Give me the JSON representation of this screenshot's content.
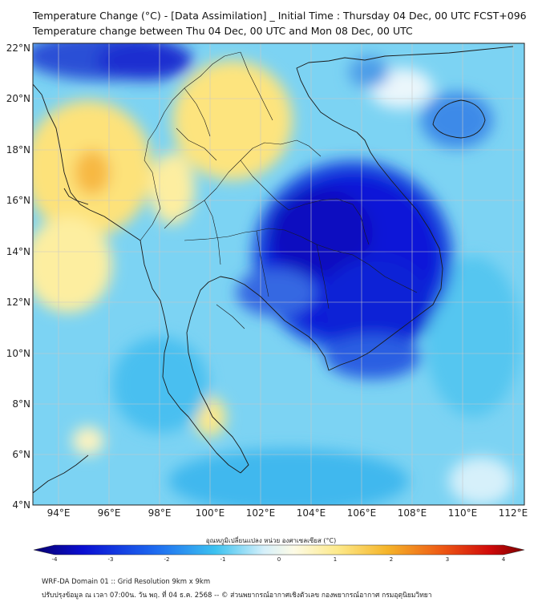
{
  "titles": {
    "line1": "Temperature Change (°C) - [Data Assimilation] _ Initial Time : Thursday 04 Dec, 00 UTC FCST+096",
    "line2": "Temperature change between Thu 04 Dec, 00 UTC and Mon 08 Dec, 00 UTC"
  },
  "map": {
    "region": "Indochina / Thailand",
    "lon_range": [
      93,
      112.5
    ],
    "lat_range": [
      4,
      22.2
    ],
    "lat_labels": [
      "22°N",
      "20°N",
      "18°N",
      "16°N",
      "14°N",
      "12°N",
      "10°N",
      "8°N",
      "6°N",
      "4°N"
    ],
    "lon_labels": [
      "94°E",
      "96°E",
      "98°E",
      "100°E",
      "102°E",
      "104°E",
      "106°E",
      "108°E",
      "110°E",
      "112°E"
    ],
    "grid": true,
    "colormap": "diverging blue-white-yellow-red",
    "strongest_cooling_region": "Cambodia / southern Laos / eastern Thailand",
    "warming_regions": [
      "Myanmar west coast",
      "northern Thailand",
      "Gulf of Thailand coast"
    ]
  },
  "colorbar": {
    "label": "อุณหภูมิเปลี่ยนแปลง หน่วย องศาเซลเซียส (°C)",
    "tick_labels": [
      "-4",
      "-3",
      "-2",
      "-1",
      "0",
      "1",
      "2",
      "3",
      "4"
    ],
    "range": [
      -4,
      4
    ]
  },
  "footer": {
    "line1": "WRF-DA Domain 01 :: Grid Resolution 9km x 9km",
    "line2": "ปรับปรุงข้อมูล ณ เวลา 07:00น. วัน พฤ. ที่ 04 ธ.ค. 2568 -- © ส่วนพยากรณ์อากาศเชิงตัวเลข กองพยากรณ์อากาศ กรมอุตุนิยมวิทยา"
  }
}
